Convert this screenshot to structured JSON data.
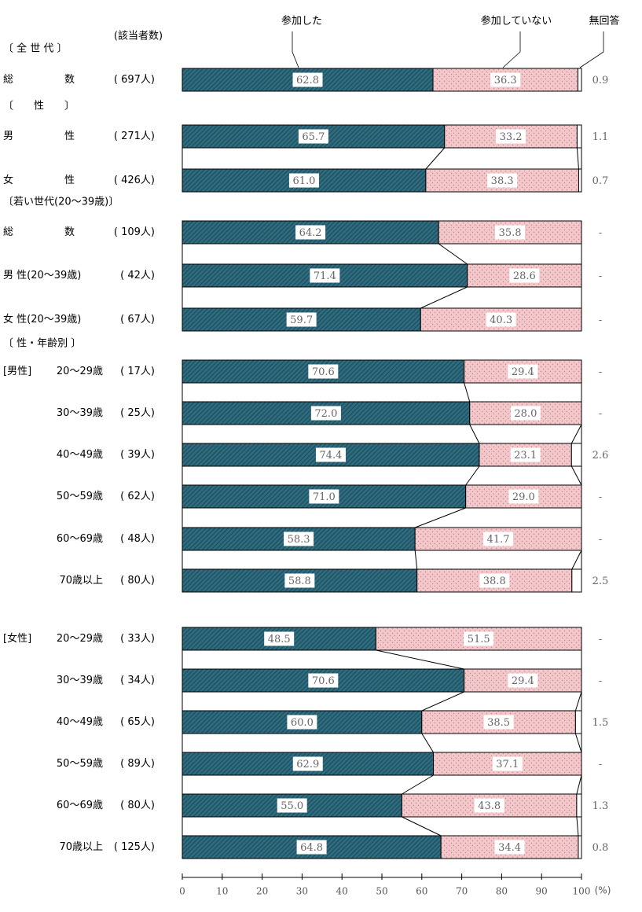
{
  "colors": {
    "participated": "#2e6b7e",
    "not_participated": "#f4c7cb",
    "no_answer": "#ffffff",
    "stroke": "#000000",
    "value_text": "#666666"
  },
  "chart_data": {
    "type": "bar",
    "orientation": "horizontal",
    "stacked": true,
    "series": [
      {
        "name": "参加した"
      },
      {
        "name": "参加していない"
      },
      {
        "name": "無回答"
      }
    ],
    "count_header": "(該当者数)",
    "x_ticks": [
      "0",
      "10",
      "20",
      "30",
      "40",
      "50",
      "60",
      "70",
      "80",
      "90",
      "100"
    ],
    "unit": "(%)",
    "xlim": [
      0,
      100
    ],
    "sections": [
      {
        "label": "〔 全 世 代 〕",
        "rows": [
          {
            "label": "総　　　　　数",
            "sublabel": "",
            "count": "( 697人)",
            "v": [
              62.8,
              36.3,
              0.9
            ],
            "labels": [
              "62.8",
              "36.3",
              "0.9"
            ]
          }
        ]
      },
      {
        "label": "〔　　性　　〕",
        "rows": [
          {
            "label": "男　　　　　性",
            "sublabel": "",
            "count": "( 271人)",
            "v": [
              65.7,
              33.2,
              1.1
            ],
            "labels": [
              "65.7",
              "33.2",
              "1.1"
            ]
          },
          {
            "label": "女　　　　　性",
            "sublabel": "",
            "count": "( 426人)",
            "v": [
              61.0,
              38.3,
              0.7
            ],
            "labels": [
              "61.0",
              "38.3",
              "0.7"
            ]
          }
        ]
      },
      {
        "label": "〔若い世代(20～39歳)〕",
        "rows": [
          {
            "label": "総　　　　　数",
            "sublabel": "",
            "count": "( 109人)",
            "v": [
              64.2,
              35.8,
              0
            ],
            "labels": [
              "64.2",
              "35.8",
              "-"
            ]
          },
          {
            "label": "男 性(20～39歳)",
            "sublabel": "",
            "count": "(  42人)",
            "v": [
              71.4,
              28.6,
              0
            ],
            "labels": [
              "71.4",
              "28.6",
              "-"
            ]
          },
          {
            "label": "女 性(20～39歳)",
            "sublabel": "",
            "count": "(  67人)",
            "v": [
              59.7,
              40.3,
              0
            ],
            "labels": [
              "59.7",
              "40.3",
              "-"
            ]
          }
        ]
      },
      {
        "label": "〔 性・年齢別 〕",
        "rows": [
          {
            "label": "[男性]",
            "sublabel": "20～29歳",
            "count": "(  17人)",
            "v": [
              70.6,
              29.4,
              0
            ],
            "labels": [
              "70.6",
              "29.4",
              "-"
            ]
          },
          {
            "label": "",
            "sublabel": "30～39歳",
            "count": "(  25人)",
            "v": [
              72.0,
              28.0,
              0
            ],
            "labels": [
              "72.0",
              "28.0",
              "-"
            ]
          },
          {
            "label": "",
            "sublabel": "40～49歳",
            "count": "(  39人)",
            "v": [
              74.4,
              23.1,
              2.6
            ],
            "labels": [
              "74.4",
              "23.1",
              "2.6"
            ]
          },
          {
            "label": "",
            "sublabel": "50～59歳",
            "count": "(  62人)",
            "v": [
              71.0,
              29.0,
              0
            ],
            "labels": [
              "71.0",
              "29.0",
              "-"
            ]
          },
          {
            "label": "",
            "sublabel": "60～69歳",
            "count": "(  48人)",
            "v": [
              58.3,
              41.7,
              0
            ],
            "labels": [
              "58.3",
              "41.7",
              "-"
            ]
          },
          {
            "label": "",
            "sublabel": "70歳以上",
            "count": "(  80人)",
            "v": [
              58.8,
              38.8,
              2.5
            ],
            "labels": [
              "58.8",
              "38.8",
              "2.5"
            ]
          },
          {
            "label": "[女性]",
            "sublabel": "20～29歳",
            "count": "(  33人)",
            "v": [
              48.5,
              51.5,
              0
            ],
            "labels": [
              "48.5",
              "51.5",
              "-"
            ]
          },
          {
            "label": "",
            "sublabel": "30～39歳",
            "count": "(  34人)",
            "v": [
              70.6,
              29.4,
              0
            ],
            "labels": [
              "70.6",
              "29.4",
              "-"
            ]
          },
          {
            "label": "",
            "sublabel": "40～49歳",
            "count": "(  65人)",
            "v": [
              60.0,
              38.5,
              1.5
            ],
            "labels": [
              "60.0",
              "38.5",
              "1.5"
            ]
          },
          {
            "label": "",
            "sublabel": "50～59歳",
            "count": "(  89人)",
            "v": [
              62.9,
              37.1,
              0
            ],
            "labels": [
              "62.9",
              "37.1",
              "-"
            ]
          },
          {
            "label": "",
            "sublabel": "60～69歳",
            "count": "(  80人)",
            "v": [
              55.0,
              43.8,
              1.3
            ],
            "labels": [
              "55.0",
              "43.8",
              "1.3"
            ]
          },
          {
            "label": "",
            "sublabel": "70歳以上",
            "count": "( 125人)",
            "v": [
              64.8,
              34.4,
              0.8
            ],
            "labels": [
              "64.8",
              "34.4",
              "0.8"
            ]
          }
        ]
      }
    ]
  }
}
